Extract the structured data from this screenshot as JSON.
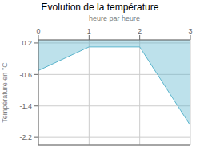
{
  "chart_data": {
    "type": "area",
    "title": "Evolution de la température",
    "xlabel": "heure par heure",
    "ylabel": "Température en °C",
    "x": [
      0,
      1,
      2,
      3
    ],
    "values": [
      -0.5,
      0.1,
      0.1,
      -1.9
    ],
    "xlim": [
      0,
      3
    ],
    "ylim": [
      -2.4,
      0.28
    ],
    "xticks": [
      0,
      1,
      2,
      3
    ],
    "yticks": [
      0.2,
      -0.6,
      -1.4,
      -2.2
    ],
    "color": "#5ab4cc",
    "grid": true
  }
}
